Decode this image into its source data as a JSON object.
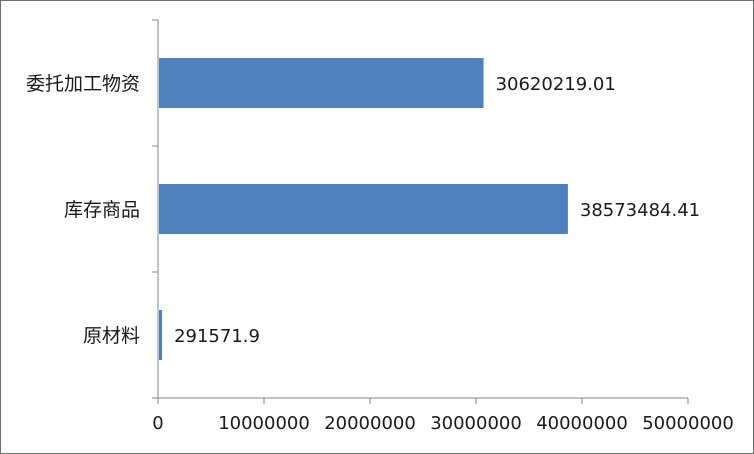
{
  "chart_data": {
    "type": "bar",
    "orientation": "horizontal",
    "categories": [
      "原材料",
      "库存商品",
      "委托加工物资"
    ],
    "values": [
      291571.9,
      38573484.41,
      30620219.01
    ],
    "data_labels": [
      "291571.9",
      "38573484.41",
      "30620219.01"
    ],
    "xlim": [
      0,
      50000000
    ],
    "xticks": [
      0,
      10000000,
      20000000,
      30000000,
      40000000,
      50000000
    ],
    "xtick_labels": [
      "0",
      "10000000",
      "20000000",
      "30000000",
      "40000000",
      "50000000"
    ],
    "bar_color": "#4f81bd",
    "grid": false,
    "legend": "none",
    "title": "",
    "xlabel": "",
    "ylabel": ""
  }
}
